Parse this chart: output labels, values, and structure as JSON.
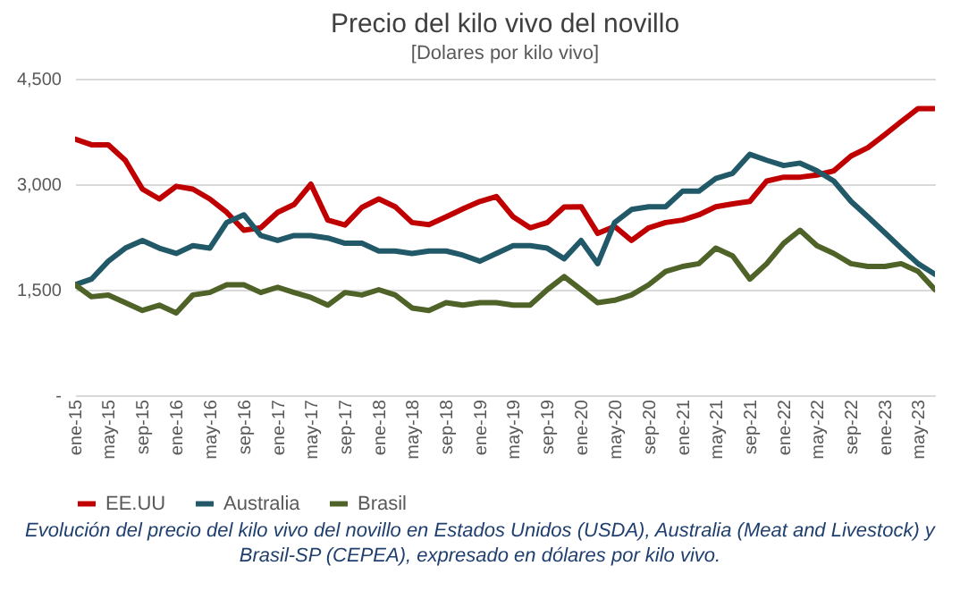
{
  "chart_data": {
    "type": "line",
    "title": "Precio del kilo vivo del novillo",
    "subtitle": "[Dolares por kilo vivo]",
    "annotations": [
      "Evolución del precio del kilo vivo del novillo en Estados Unidos (USDA), Australia (Meat and Livestock) y Brasil-SP (CEPEA), expresado en dólares por kilo vivo."
    ],
    "x": [
      "2015-01",
      "2015-03",
      "2015-05",
      "2015-07",
      "2015-09",
      "2015-11",
      "2016-01",
      "2016-03",
      "2016-05",
      "2016-07",
      "2016-09",
      "2016-11",
      "2017-01",
      "2017-03",
      "2017-05",
      "2017-07",
      "2017-09",
      "2017-11",
      "2018-01",
      "2018-03",
      "2018-05",
      "2018-07",
      "2018-09",
      "2018-11",
      "2019-01",
      "2019-03",
      "2019-05",
      "2019-07",
      "2019-09",
      "2019-11",
      "2020-01",
      "2020-03",
      "2020-05",
      "2020-07",
      "2020-09",
      "2020-11",
      "2021-01",
      "2021-03",
      "2021-05",
      "2021-07",
      "2021-09",
      "2021-11",
      "2022-01",
      "2022-03",
      "2022-05",
      "2022-07",
      "2022-09",
      "2022-11",
      "2023-01",
      "2023-03",
      "2023-05",
      "2023-07"
    ],
    "series": [
      {
        "name": "EE.UU",
        "color": "#c00000",
        "values": [
          3640,
          3560,
          3560,
          3340,
          2930,
          2790,
          2970,
          2930,
          2790,
          2600,
          2345,
          2380,
          2600,
          2710,
          3000,
          2490,
          2420,
          2670,
          2790,
          2680,
          2455,
          2425,
          2535,
          2650,
          2755,
          2825,
          2535,
          2380,
          2455,
          2675,
          2680,
          2300,
          2400,
          2200,
          2380,
          2455,
          2490,
          2565,
          2680,
          2720,
          2755,
          3045,
          3100,
          3100,
          3130,
          3190,
          3400,
          3520,
          3705,
          3890,
          4075,
          4075
        ]
      },
      {
        "name": "Australia",
        "color": "#215968",
        "values": [
          1570,
          1650,
          1905,
          2090,
          2200,
          2090,
          2015,
          2125,
          2090,
          2455,
          2565,
          2270,
          2200,
          2270,
          2270,
          2235,
          2160,
          2160,
          2050,
          2050,
          2015,
          2050,
          2050,
          1990,
          1905,
          2015,
          2125,
          2125,
          2090,
          1940,
          2200,
          1870,
          2455,
          2640,
          2680,
          2680,
          2900,
          2900,
          3080,
          3155,
          3425,
          3340,
          3265,
          3300,
          3190,
          3045,
          2755,
          2535,
          2310,
          2090,
          1870,
          1720
        ]
      },
      {
        "name": "Brasil",
        "color": "#4f6228",
        "values": [
          1570,
          1400,
          1425,
          1315,
          1205,
          1280,
          1170,
          1425,
          1460,
          1570,
          1570,
          1460,
          1535,
          1460,
          1390,
          1280,
          1460,
          1425,
          1500,
          1425,
          1240,
          1205,
          1315,
          1280,
          1315,
          1315,
          1280,
          1280,
          1500,
          1685,
          1500,
          1315,
          1350,
          1425,
          1570,
          1760,
          1830,
          1870,
          2090,
          1980,
          1650,
          1870,
          2160,
          2345,
          2125,
          2015,
          1870,
          1830,
          1830,
          1870,
          1760,
          1500
        ]
      }
    ],
    "xlim": [
      "2015-01",
      "2023-07"
    ],
    "xticks": [
      {
        "value": "2015-01",
        "label": "ene-15"
      },
      {
        "value": "2015-05",
        "label": "may-15"
      },
      {
        "value": "2015-09",
        "label": "sep-15"
      },
      {
        "value": "2016-01",
        "label": "ene-16"
      },
      {
        "value": "2016-05",
        "label": "may-16"
      },
      {
        "value": "2016-09",
        "label": "sep-16"
      },
      {
        "value": "2017-01",
        "label": "ene-17"
      },
      {
        "value": "2017-05",
        "label": "may-17"
      },
      {
        "value": "2017-09",
        "label": "sep-17"
      },
      {
        "value": "2018-01",
        "label": "ene-18"
      },
      {
        "value": "2018-05",
        "label": "may-18"
      },
      {
        "value": "2018-09",
        "label": "sep-18"
      },
      {
        "value": "2019-01",
        "label": "ene-19"
      },
      {
        "value": "2019-05",
        "label": "may-19"
      },
      {
        "value": "2019-09",
        "label": "sep-19"
      },
      {
        "value": "2020-01",
        "label": "ene-20"
      },
      {
        "value": "2020-05",
        "label": "may-20"
      },
      {
        "value": "2020-09",
        "label": "sep-20"
      },
      {
        "value": "2021-01",
        "label": "ene-21"
      },
      {
        "value": "2021-05",
        "label": "may-21"
      },
      {
        "value": "2021-09",
        "label": "sep-21"
      },
      {
        "value": "2022-01",
        "label": "ene-22"
      },
      {
        "value": "2022-05",
        "label": "may-22"
      },
      {
        "value": "2022-09",
        "label": "sep-22"
      },
      {
        "value": "2023-01",
        "label": "ene-23"
      },
      {
        "value": "2023-05",
        "label": "may-23"
      }
    ],
    "ylim": [
      0,
      4500
    ],
    "yticks": [
      {
        "value": 0,
        "label": "-"
      },
      {
        "value": 1500,
        "label": "1,500"
      },
      {
        "value": 3000,
        "label": "3,000"
      },
      {
        "value": 4500,
        "label": "4,500"
      }
    ],
    "grid": "y",
    "legend": "bottom",
    "line_style": "solid"
  }
}
